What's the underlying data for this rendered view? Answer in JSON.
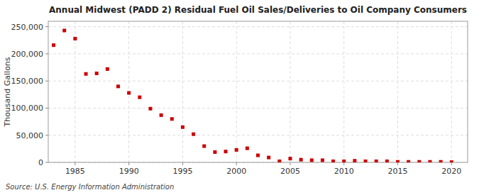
{
  "chart_data": {
    "type": "scatter",
    "title": "Annual Midwest (PADD 2) Residual Fuel Oil Sales/Deliveries to Oil Company Consumers",
    "y_label": "Thousand Gallons",
    "annotations": [
      "Source: U.S. Energy Information Administration"
    ],
    "x": [
      1983,
      1984,
      1985,
      1986,
      1987,
      1988,
      1989,
      1990,
      1991,
      1992,
      1993,
      1994,
      1995,
      1996,
      1997,
      1998,
      1999,
      2000,
      2001,
      2002,
      2003,
      2004,
      2005,
      2006,
      2007,
      2008,
      2009,
      2010,
      2011,
      2012,
      2013,
      2014,
      2015,
      2016,
      2017,
      2018,
      2019,
      2020
    ],
    "values": [
      216000,
      243000,
      228000,
      163000,
      164000,
      172000,
      140000,
      128000,
      120000,
      99000,
      87000,
      80000,
      65000,
      52000,
      30000,
      19000,
      20000,
      23000,
      26000,
      13000,
      9000,
      2000,
      7000,
      5000,
      4000,
      4000,
      2000,
      2000,
      3000,
      2000,
      2000,
      2000,
      1000,
      1000,
      1000,
      1000,
      1000,
      500
    ],
    "color": "#cc0000",
    "marker": "square",
    "xlim": [
      1982.5,
      2021.5
    ],
    "xticks": [
      1985,
      1990,
      1995,
      2000,
      2005,
      2010,
      2015,
      2020
    ],
    "ylim": [
      0,
      260000
    ],
    "yticks": [
      0,
      {
        "value": 50000,
        "label": "50,000"
      },
      {
        "value": 100000,
        "label": "100,000"
      },
      {
        "value": 150000,
        "label": "150,000"
      },
      {
        "value": 200000,
        "label": "200,000"
      },
      {
        "value": 250000,
        "label": "250,000"
      }
    ],
    "grid": true
  }
}
